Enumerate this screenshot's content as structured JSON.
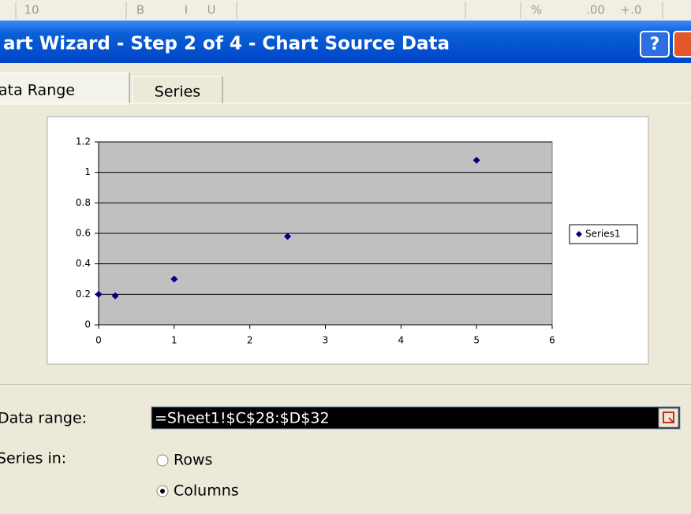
{
  "toolbar": {
    "items": [
      "10",
      "B",
      "I",
      "U",
      "%",
      ".00",
      "+.0"
    ]
  },
  "window": {
    "title": "art Wizard - Step 2 of 4 - Chart Source Data",
    "help": "?"
  },
  "tabs": [
    "ata Range",
    "Series"
  ],
  "chart_data": {
    "type": "scatter",
    "series": [
      {
        "name": "Series1",
        "color": "#000080",
        "x": [
          0,
          0.22,
          1,
          2.5,
          5
        ],
        "values": [
          0.2,
          0.19,
          0.3,
          0.58,
          1.08
        ]
      }
    ],
    "xlim": [
      0,
      6
    ],
    "xticks": [
      0,
      1,
      2,
      3,
      4,
      5,
      6
    ],
    "ylim": [
      0,
      1.2
    ],
    "yticks": [
      0,
      0.2,
      0.4,
      0.6,
      0.8,
      1,
      1.2
    ],
    "grid": true,
    "legend": "right"
  },
  "form": {
    "data_range_label": "Data range:",
    "data_range_value": "=Sheet1!$C$28:$D$32",
    "series_in_label": "Series in:",
    "options": [
      "Rows",
      "Columns"
    ],
    "selected": 1
  }
}
